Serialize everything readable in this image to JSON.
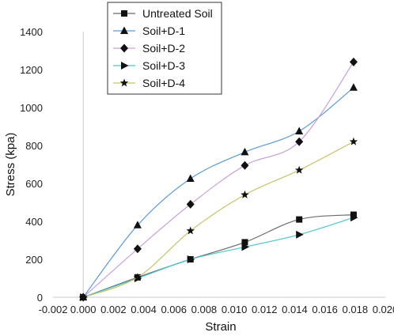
{
  "chart_data": {
    "type": "line",
    "xlabel": "Strain",
    "ylabel": "Stress (kpa)",
    "xlim": [
      -0.002,
      0.02
    ],
    "ylim": [
      0,
      1400
    ],
    "x_ticks": [
      "-0.002",
      "0.000",
      "0.002",
      "0.004",
      "0.006",
      "0.008",
      "0.010",
      "0.012",
      "0.014",
      "0.016",
      "0.018",
      "0.020"
    ],
    "y_ticks": [
      "0",
      "200",
      "400",
      "600",
      "800",
      "1000",
      "1200",
      "1400"
    ],
    "legend_position": "top-left",
    "grid": false,
    "series": [
      {
        "name": "Untreated Soil",
        "marker": "square",
        "color": "#6b6b6b",
        "x": [
          0.0,
          0.0036,
          0.0071,
          0.0107,
          0.0143,
          0.0179
        ],
        "y": [
          0,
          105,
          200,
          290,
          410,
          435
        ]
      },
      {
        "name": "Soil+D-1",
        "marker": "triangle-up",
        "color": "#5b9bd5",
        "x": [
          0.0,
          0.0036,
          0.0071,
          0.0107,
          0.0143,
          0.0179
        ],
        "y": [
          0,
          380,
          625,
          765,
          875,
          1105
        ]
      },
      {
        "name": "Soil+D-2",
        "marker": "diamond",
        "color": "#c9a0dc",
        "x": [
          0.0,
          0.0036,
          0.0071,
          0.0107,
          0.0143,
          0.0179
        ],
        "y": [
          0,
          255,
          490,
          695,
          820,
          1240
        ]
      },
      {
        "name": "Soil+D-3",
        "marker": "triangle-right",
        "color": "#4bc6d0",
        "x": [
          0.0,
          0.0036,
          0.0071,
          0.0107,
          0.0143,
          0.0179
        ],
        "y": [
          0,
          100,
          200,
          265,
          330,
          420
        ]
      },
      {
        "name": "Soil+D-4",
        "marker": "star",
        "color": "#c8c46a",
        "x": [
          0.0,
          0.0036,
          0.0071,
          0.0107,
          0.0143,
          0.0179
        ],
        "y": [
          0,
          105,
          350,
          540,
          670,
          820
        ]
      }
    ]
  }
}
